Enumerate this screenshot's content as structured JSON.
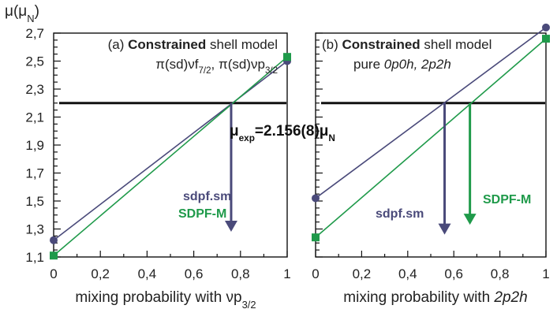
{
  "y_axis_label": "μ(μ_N)",
  "experimental_label": "μ_exp=2.156(8)μ_N",
  "experimental_value": 2.2,
  "colors": {
    "sdpf_sm": "#4a4a7a",
    "sdpf_m": "#1f9a4a",
    "experiment": "#111111",
    "axis": "#111111"
  },
  "chart_data": [
    {
      "type": "line",
      "panel": "(a)",
      "title_prefix": "(a) ",
      "title_bold": "Constrained",
      "title_rest": " shell model",
      "subtitle": "π(sd)νf_{7/2}, π(sd)νp_{3/2}",
      "xlabel": "mixing probability with νp_{3/2}",
      "x_ticks": [
        "0",
        "0,2",
        "0,4",
        "0,6",
        "0,8",
        "1"
      ],
      "y_ticks": [
        "1,1",
        "1,3",
        "1,5",
        "1,7",
        "1,9",
        "2,1",
        "2,3",
        "2,5",
        "2,7"
      ],
      "xlim": [
        0,
        1
      ],
      "ylim": [
        1.1,
        2.7
      ],
      "series": [
        {
          "name": "sdpf.sm",
          "color_key": "sdpf_sm",
          "marker": "circle",
          "x": [
            0,
            1
          ],
          "y": [
            1.22,
            2.5
          ]
        },
        {
          "name": "SDPF-M",
          "color_key": "sdpf_m",
          "marker": "square",
          "x": [
            0,
            1
          ],
          "y": [
            1.11,
            2.53
          ]
        }
      ],
      "intersections": [
        {
          "series": "sdpf.sm",
          "x": 0.76,
          "y": 2.2,
          "arrow_to_y": 1.28
        }
      ]
    },
    {
      "type": "line",
      "panel": "(b)",
      "title_prefix": "(b) ",
      "title_bold": "Constrained",
      "title_rest": " shell model",
      "subtitle_plain": "pure ",
      "subtitle_italic": "0p0h, 2p2h",
      "xlabel_plain": "mixing probability with ",
      "xlabel_italic": "2p2h",
      "x_ticks": [
        "0",
        "0,2",
        "0,4",
        "0,6",
        "0,8",
        "1"
      ],
      "xlim": [
        0,
        1
      ],
      "ylim": [
        1.1,
        2.7
      ],
      "series": [
        {
          "name": "sdpf.sm",
          "color_key": "sdpf_sm",
          "marker": "circle",
          "x": [
            0,
            1
          ],
          "y": [
            1.52,
            2.74
          ]
        },
        {
          "name": "SDPF-M",
          "color_key": "sdpf_m",
          "marker": "square",
          "x": [
            0,
            1
          ],
          "y": [
            1.24,
            2.66
          ]
        }
      ],
      "intersections": [
        {
          "series": "sdpf.sm",
          "x": 0.56,
          "y": 2.2,
          "arrow_to_y": 1.26
        },
        {
          "series": "SDPF-M",
          "x": 0.67,
          "y": 2.2,
          "arrow_to_y": 1.33
        }
      ]
    }
  ]
}
